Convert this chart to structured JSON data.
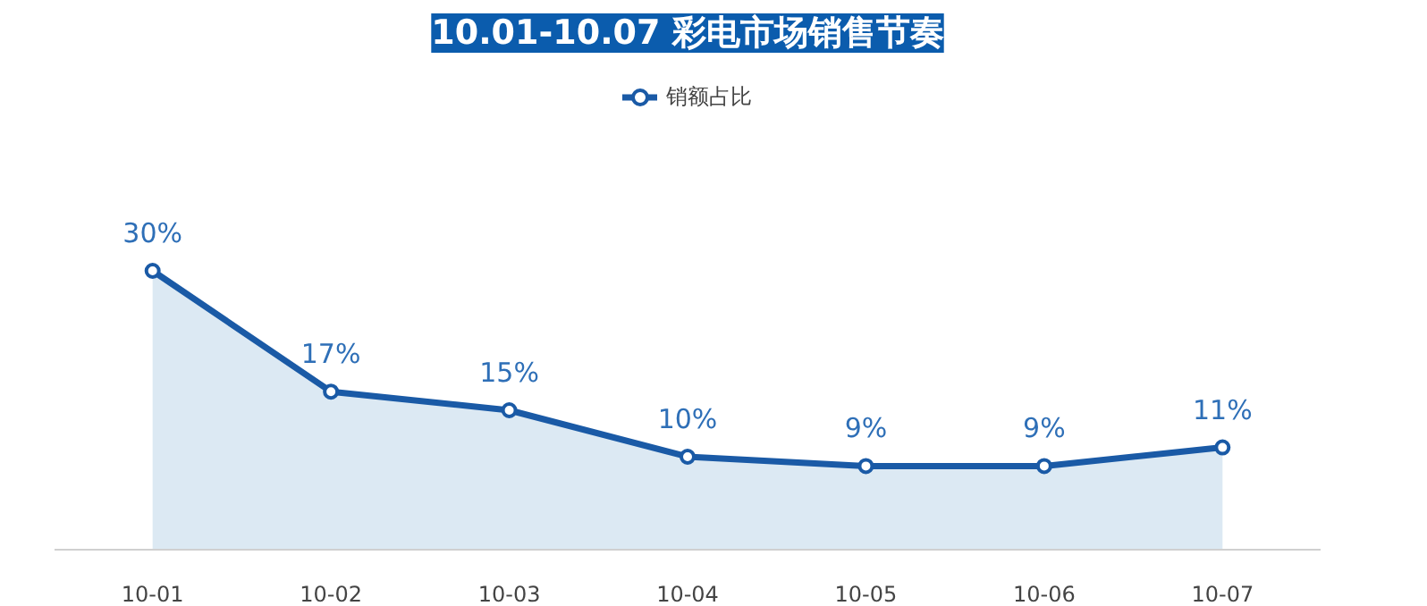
{
  "chart_data": {
    "type": "area",
    "title": "10.01-10.07 彩电市场销售节奏",
    "categories": [
      "10-01",
      "10-02",
      "10-03",
      "10-04",
      "10-05",
      "10-06",
      "10-07"
    ],
    "series": [
      {
        "name": "销额占比",
        "color": "#1a5aa6",
        "values": [
          30,
          17,
          15,
          10,
          9,
          9,
          11
        ],
        "value_labels": [
          "30%",
          "17%",
          "15%",
          "10%",
          "9%",
          "9%",
          "11%"
        ]
      }
    ],
    "marker": "circle",
    "legend": "top"
  }
}
